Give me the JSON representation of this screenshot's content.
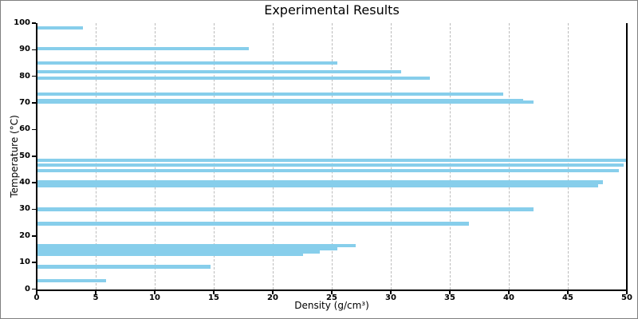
{
  "chart_data": {
    "type": "bar",
    "orientation": "horizontal",
    "title": "Experimental Results",
    "xlabel": "Density (g/cm³)",
    "ylabel": "Temperature (°C)",
    "xlim": [
      0,
      50
    ],
    "ylim": [
      0,
      100
    ],
    "x_ticks": [
      0,
      5,
      10,
      15,
      20,
      25,
      30,
      35,
      40,
      45,
      50
    ],
    "y_ticks": [
      0,
      10,
      20,
      30,
      40,
      50,
      60,
      70,
      80,
      90,
      100
    ],
    "grid": "vertical-dashed",
    "legend": "none",
    "bar_color": "#87CEEB",
    "points": [
      {
        "temperature": 98.2,
        "density": 3.9
      },
      {
        "temperature": 90.4,
        "density": 18.0
      },
      {
        "temperature": 85.0,
        "density": 25.5
      },
      {
        "temperature": 81.7,
        "density": 30.9
      },
      {
        "temperature": 79.4,
        "density": 33.3
      },
      {
        "temperature": 73.4,
        "density": 39.5
      },
      {
        "temperature": 71.0,
        "density": 41.2
      },
      {
        "temperature": 70.2,
        "density": 42.1
      },
      {
        "temperature": 48.5,
        "density": 50.0
      },
      {
        "temperature": 46.7,
        "density": 49.7
      },
      {
        "temperature": 44.6,
        "density": 49.3
      },
      {
        "temperature": 40.2,
        "density": 48.0
      },
      {
        "temperature": 39.0,
        "density": 47.6
      },
      {
        "temperature": 30.0,
        "density": 42.1
      },
      {
        "temperature": 24.6,
        "density": 36.6
      },
      {
        "temperature": 16.4,
        "density": 27.0
      },
      {
        "temperature": 15.2,
        "density": 25.5
      },
      {
        "temperature": 14.1,
        "density": 24.0
      },
      {
        "temperature": 13.1,
        "density": 22.6
      },
      {
        "temperature": 8.4,
        "density": 14.7
      },
      {
        "temperature": 3.2,
        "density": 5.9
      }
    ]
  }
}
